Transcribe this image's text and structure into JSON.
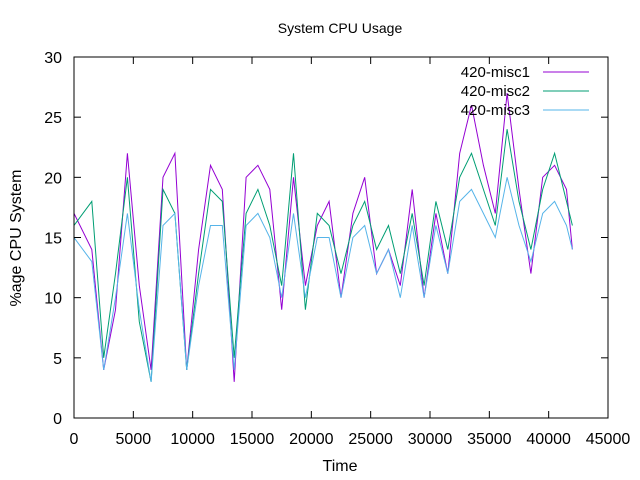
{
  "chart_data": {
    "type": "line",
    "title": "System CPU Usage",
    "xlabel": "Time",
    "ylabel": "%age CPU System",
    "xlim": [
      0,
      45000
    ],
    "ylim": [
      0,
      30
    ],
    "x_ticks": [
      "0",
      "5000",
      "10000",
      "15000",
      "20000",
      "25000",
      "30000",
      "35000",
      "40000",
      "45000"
    ],
    "y_ticks": [
      "0",
      "5",
      "10",
      "15",
      "20",
      "25",
      "30"
    ],
    "grid": false,
    "legend_position": "top-right",
    "series": [
      {
        "name": "420-misc1",
        "color": "#9400d3",
        "x": [
          0,
          1500,
          2500,
          3500,
          4500,
          5500,
          6500,
          7500,
          8500,
          9500,
          10500,
          11500,
          12500,
          13500,
          14500,
          15500,
          16500,
          17500,
          18500,
          19500,
          20500,
          21500,
          22500,
          23500,
          24500,
          25500,
          26500,
          27500,
          28500,
          29500,
          30500,
          31500,
          32500,
          33500,
          34500,
          35500,
          36500,
          37500,
          38500,
          39500,
          40500,
          41500,
          42000
        ],
        "values": [
          17,
          14,
          4,
          9,
          22,
          11,
          4,
          20,
          22,
          4,
          14,
          21,
          19,
          3,
          20,
          21,
          19,
          9,
          20,
          11,
          16,
          18,
          10,
          17,
          20,
          12,
          14,
          11,
          19,
          10,
          17,
          12,
          22,
          26,
          21,
          17,
          27,
          19,
          12,
          20,
          21,
          19,
          14
        ]
      },
      {
        "name": "420-misc2",
        "color": "#009e73",
        "x": [
          0,
          1500,
          2500,
          3500,
          4500,
          5500,
          6500,
          7500,
          8500,
          9500,
          10500,
          11500,
          12500,
          13500,
          14500,
          15500,
          16500,
          17500,
          18500,
          19500,
          20500,
          21500,
          22500,
          23500,
          24500,
          25500,
          26500,
          27500,
          28500,
          29500,
          30500,
          31500,
          32500,
          33500,
          34500,
          35500,
          36500,
          37500,
          38500,
          39500,
          40500,
          41500,
          42000
        ],
        "values": [
          16,
          18,
          5,
          12,
          20,
          8,
          3,
          19,
          17,
          4,
          12,
          19,
          18,
          5,
          17,
          19,
          16,
          11,
          22,
          9,
          17,
          16,
          12,
          16,
          18,
          14,
          16,
          12,
          17,
          11,
          18,
          14,
          20,
          22,
          19,
          16,
          24,
          18,
          14,
          19,
          22,
          18,
          16
        ]
      },
      {
        "name": "420-misc3",
        "color": "#56b4e9",
        "x": [
          0,
          1500,
          2500,
          3500,
          4500,
          5500,
          6500,
          7500,
          8500,
          9500,
          10500,
          11500,
          12500,
          13500,
          14500,
          15500,
          16500,
          17500,
          18500,
          19500,
          20500,
          21500,
          22500,
          23500,
          24500,
          25500,
          26500,
          27500,
          28500,
          29500,
          30500,
          31500,
          32500,
          33500,
          34500,
          35500,
          36500,
          37500,
          38500,
          39500,
          40500,
          41500,
          42000
        ],
        "values": [
          15,
          13,
          4,
          10,
          17,
          9,
          3,
          16,
          17,
          4,
          11,
          16,
          16,
          4,
          16,
          17,
          15,
          10,
          17,
          10,
          15,
          15,
          10,
          15,
          16,
          12,
          14,
          10,
          16,
          10,
          16,
          12,
          18,
          19,
          17,
          15,
          20,
          16,
          13,
          17,
          18,
          16,
          14
        ]
      }
    ]
  }
}
